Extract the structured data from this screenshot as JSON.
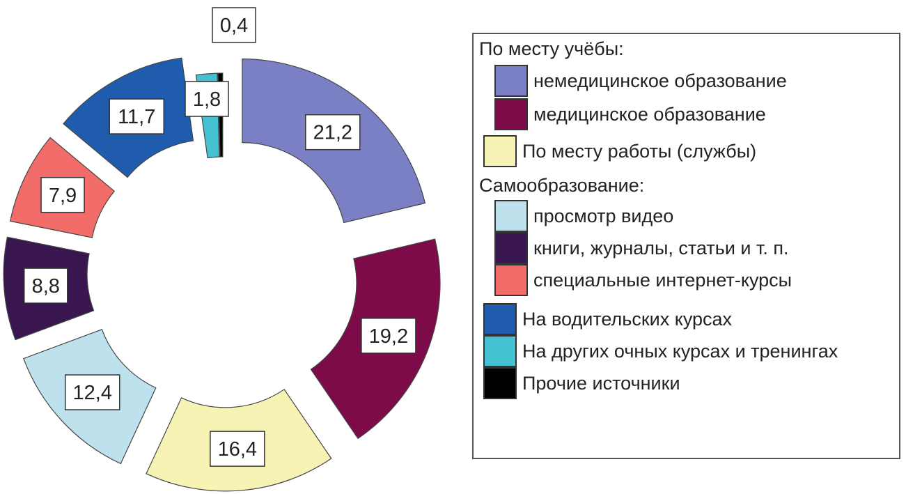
{
  "chart_data": {
    "type": "pie",
    "donut": true,
    "exploded": true,
    "start_angle": "12 o'clock, clockwise",
    "legend_position": "right",
    "slices": [
      {
        "label": "немедицинское образование",
        "value": 21.2,
        "display": "21,2",
        "color": "#7b80c4"
      },
      {
        "label": "медицинское образование",
        "value": 19.2,
        "display": "19,2",
        "color": "#7d0b49"
      },
      {
        "label": "По месту работы (службы)",
        "value": 16.4,
        "display": "16,4",
        "color": "#f7f3b4"
      },
      {
        "label": "просмотр видео",
        "value": 12.4,
        "display": "12,4",
        "color": "#bde2ee"
      },
      {
        "label": "книги, журналы, статьи и т. п.",
        "value": 8.8,
        "display": "8,8",
        "color": "#3a1650"
      },
      {
        "label": "специальные интернет-курсы",
        "value": 7.9,
        "display": "7,9",
        "color": "#f26d6a"
      },
      {
        "label": "На водительских курсах",
        "value": 11.7,
        "display": "11,7",
        "color": "#1f5cad"
      },
      {
        "label": "На других очных курсах и тренингах",
        "value": 1.8,
        "display": "1,8",
        "color": "#45c2d1"
      },
      {
        "label": "Прочие источники",
        "value": 0.4,
        "display": "0,4",
        "color": "#000000"
      }
    ],
    "legend": {
      "group_study": "По месту учёбы:",
      "group_self": "Самообразование:"
    }
  }
}
